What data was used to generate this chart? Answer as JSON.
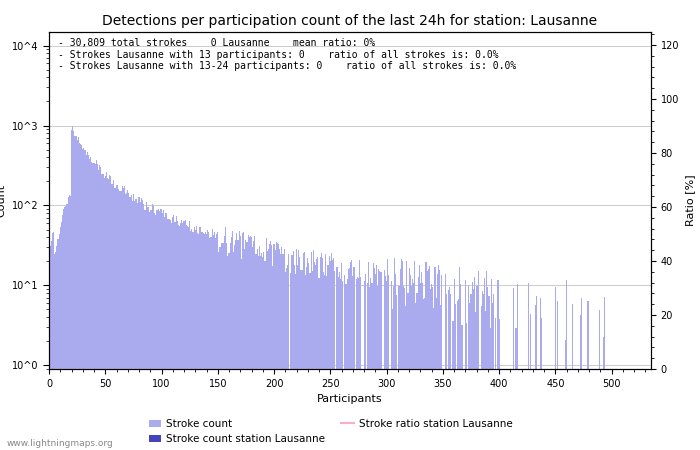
{
  "title": "Detections per participation count of the last 24h for station: Lausanne",
  "xlabel": "Participants",
  "ylabel_left": "Count",
  "ylabel_right": "Ratio [%]",
  "annotation_lines": [
    "30,809 total strokes    0 Lausanne    mean ratio: 0%",
    "Strokes Lausanne with 13 participants: 0    ratio of all strokes is: 0.0%",
    "Strokes Lausanne with 13-24 participants: 0    ratio of all strokes is: 0.0%"
  ],
  "watermark": "www.lightningmaps.org",
  "bar_color_global": "#aaaaee",
  "bar_color_station": "#4444bb",
  "ratio_line_color": "#ffaacc",
  "xlim": [
    0,
    535
  ],
  "ylim_right": [
    0,
    125
  ],
  "right_ticks": [
    0,
    20,
    40,
    60,
    80,
    100,
    120
  ],
  "title_fontsize": 10,
  "annotation_fontsize": 7,
  "axis_fontsize": 8,
  "tick_fontsize": 7,
  "legend_fontsize": 7.5
}
